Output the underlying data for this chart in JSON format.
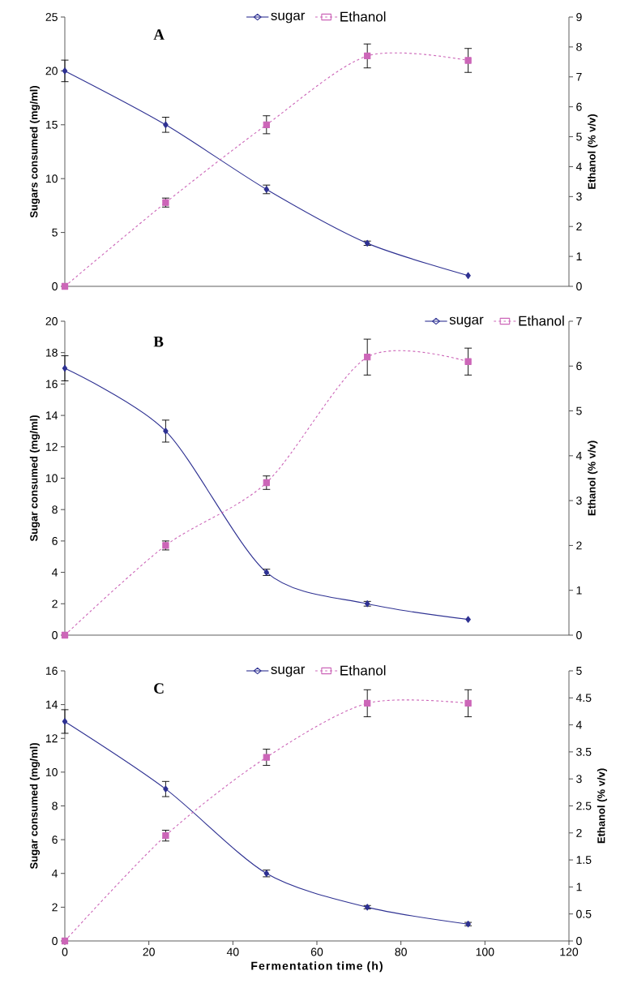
{
  "chart_data": [
    {
      "type": "line",
      "title": "A",
      "x": [
        0,
        24,
        48,
        72,
        96
      ],
      "xlim": [
        0,
        120
      ],
      "xticks": [
        0,
        20,
        40,
        60,
        80,
        100,
        120
      ],
      "ylim": [
        0,
        25
      ],
      "yticks": [
        0,
        5,
        10,
        15,
        20,
        25
      ],
      "y2lim": [
        0,
        9
      ],
      "y2ticks": [
        0,
        1,
        2,
        3,
        4,
        5,
        6,
        7,
        8,
        9
      ],
      "ylabel": "Sugars consumed (mg/ml)",
      "y2label": "Ethanol (% v/v)",
      "legend": "top",
      "tick_labels": "y",
      "series": [
        {
          "name": "sugar",
          "color": "#2e3192",
          "marker": "diamond",
          "line_style": "solid",
          "values": [
            20,
            15,
            9,
            4,
            1
          ],
          "errors": [
            1,
            0.7,
            0.4,
            0.2,
            null
          ]
        },
        {
          "name": "Ethanol",
          "color": "#cc66b8",
          "marker": "square",
          "line_style": "dashed",
          "axis": "y2",
          "values": [
            0,
            2.8,
            5.4,
            7.7,
            7.55
          ],
          "errors": [
            null,
            0.15,
            0.3,
            0.4,
            0.4
          ]
        }
      ]
    },
    {
      "type": "line",
      "title": "B",
      "x": [
        0,
        24,
        48,
        72,
        96
      ],
      "xlim": [
        0,
        120
      ],
      "xticks": [
        0,
        20,
        40,
        60,
        80,
        100,
        120
      ],
      "ylim": [
        0,
        20
      ],
      "yticks": [
        0,
        2,
        4,
        6,
        8,
        10,
        12,
        14,
        16,
        18,
        20
      ],
      "y2lim": [
        0,
        7
      ],
      "y2ticks": [
        0,
        1,
        2,
        3,
        4,
        5,
        6,
        7
      ],
      "ylabel": "Sugar consumed (mg/ml)",
      "y2label": "Ethanol (% v/v)",
      "legend": "top right",
      "tick_labels": "y",
      "series": [
        {
          "name": "sugar",
          "color": "#2e3192",
          "marker": "diamond",
          "line_style": "solid",
          "values": [
            17,
            13,
            4,
            2,
            1
          ],
          "errors": [
            0.8,
            0.7,
            0.2,
            0.15,
            null
          ]
        },
        {
          "name": "Ethanol",
          "color": "#cc66b8",
          "marker": "square",
          "line_style": "dashed",
          "axis": "y2",
          "values": [
            0,
            2,
            3.4,
            6.2,
            6.1
          ],
          "errors": [
            null,
            0.1,
            0.15,
            0.4,
            0.3
          ]
        }
      ]
    },
    {
      "type": "line",
      "title": "C",
      "x": [
        0,
        24,
        48,
        72,
        96
      ],
      "xlim": [
        0,
        120
      ],
      "xticks": [
        0,
        20,
        40,
        60,
        80,
        100,
        120
      ],
      "ylim": [
        0,
        16
      ],
      "yticks": [
        0,
        2,
        4,
        6,
        8,
        10,
        12,
        14,
        16
      ],
      "y2lim": [
        0,
        5
      ],
      "y2ticks": [
        0,
        0.5,
        1,
        1.5,
        2,
        2.5,
        3,
        3.5,
        4,
        4.5,
        5
      ],
      "xlabel": "Fermentation time (h)",
      "ylabel": "Sugar consumed (mg/ml)",
      "y2label": "Ethanol (% v/v)",
      "legend": "top",
      "series": [
        {
          "name": "sugar",
          "color": "#2e3192",
          "marker": "diamond",
          "line_style": "solid",
          "values": [
            13,
            9,
            4,
            2,
            1
          ],
          "errors": [
            0.7,
            0.45,
            0.2,
            0.1,
            0.1
          ]
        },
        {
          "name": "Ethanol",
          "color": "#cc66b8",
          "marker": "square",
          "line_style": "dashed",
          "axis": "y2",
          "values": [
            0,
            1.95,
            3.4,
            4.4,
            4.4
          ],
          "errors": [
            null,
            0.1,
            0.15,
            0.25,
            0.25
          ]
        }
      ]
    }
  ]
}
